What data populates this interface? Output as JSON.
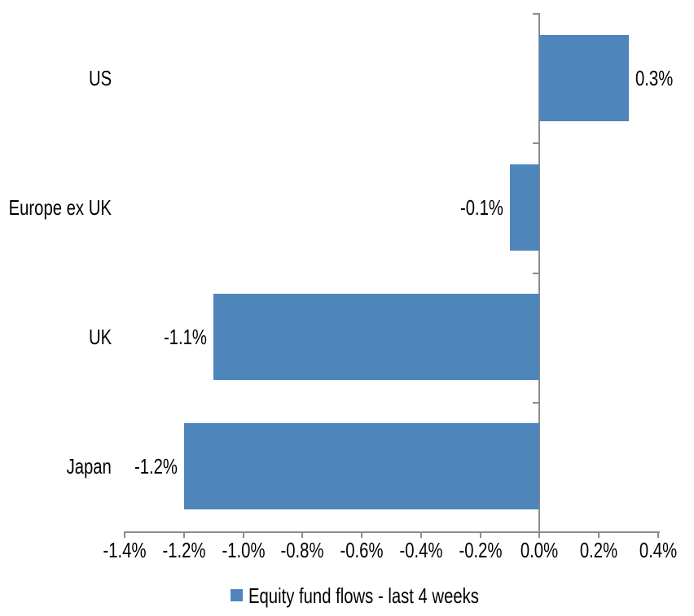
{
  "chart_data": {
    "type": "bar",
    "orientation": "horizontal",
    "title": "",
    "xlabel": "",
    "ylabel": "",
    "categories": [
      "US",
      "Europe ex UK",
      "UK",
      "Japan"
    ],
    "series": [
      {
        "name": "Equity fund flows - last 4 weeks",
        "values": [
          0.3,
          -0.1,
          -1.1,
          -1.2
        ],
        "data_labels": [
          "0.3%",
          "-0.1%",
          "-1.1%",
          "-1.2%"
        ]
      }
    ],
    "x_tick_values": [
      -1.4,
      -1.2,
      -1.0,
      -0.8,
      -0.6,
      -0.4,
      -0.2,
      0.0,
      0.2,
      0.4
    ],
    "x_ticks": [
      "-1.4%",
      "-1.2%",
      "-1.0%",
      "-0.8%",
      "-0.6%",
      "-0.4%",
      "-0.2%",
      "0.0%",
      "0.2%",
      "0.4%"
    ],
    "xlim": [
      -1.4,
      0.4
    ],
    "grid": false,
    "legend_position": "bottom",
    "bar_color": "#4E86BC",
    "axis_color": "#8C8C8C",
    "text_color": "#000000"
  },
  "legend": {
    "label": "Equity fund flows - last 4 weeks"
  }
}
